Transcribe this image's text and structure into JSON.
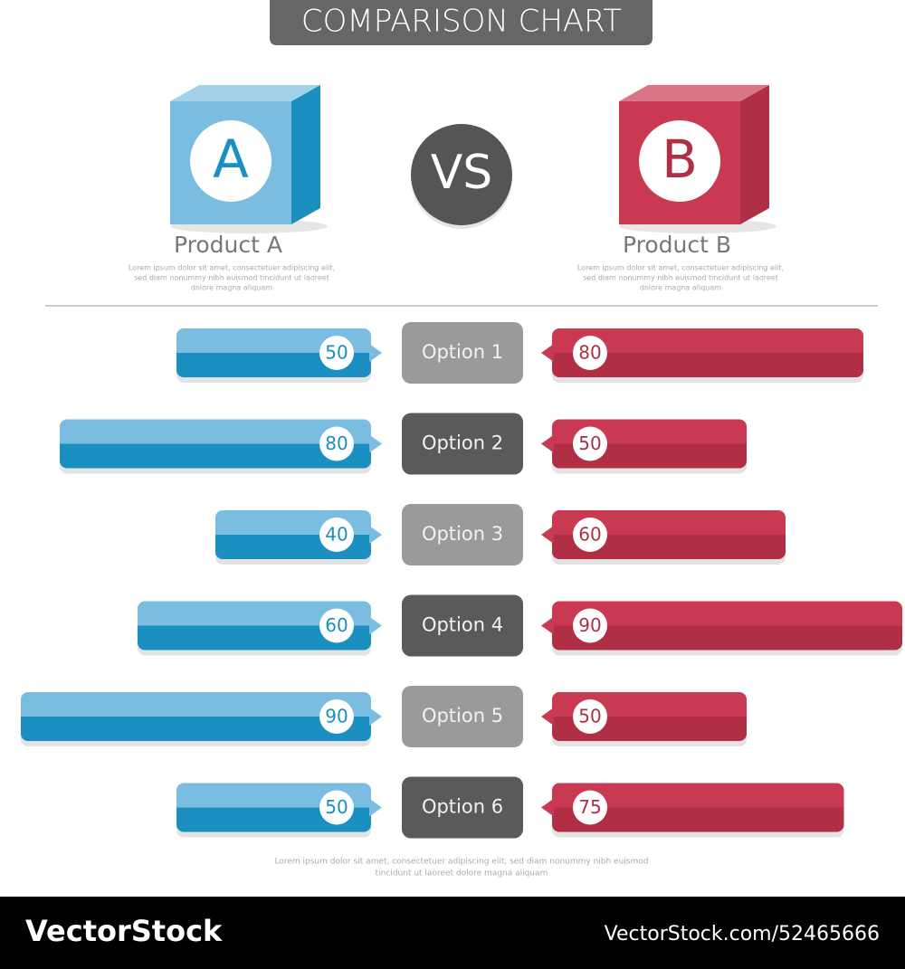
{
  "chart_data": {
    "type": "butterfly",
    "title": "COMPARISON CHART",
    "vs_label": "VS",
    "categories": [
      "Option 1",
      "Option 2",
      "Option 3",
      "Option 4",
      "Option 5",
      "Option 6"
    ],
    "series": [
      {
        "name": "Product A",
        "letter": "A",
        "color": "#1a8fc0",
        "light_color": "#7bbde0",
        "description": [
          "Lorem ipsum dolor sit amet, consectetuer adipiscing elit,",
          "sed diam nonummy nibh euismod tincidunt ut laoreet",
          "dolore magna aliquam"
        ],
        "values": [
          50,
          80,
          40,
          60,
          90,
          50
        ]
      },
      {
        "name": "Product B",
        "letter": "B",
        "color": "#b02f45",
        "light_color": "#c93a52",
        "description": [
          "Lorem ipsum dolor sit amet, consectetuer adipiscing elit,",
          "sed diam nonummy nibh euismod tincidunt ut laoreet",
          "dolore magna aliquam"
        ],
        "values": [
          80,
          50,
          60,
          90,
          50,
          75
        ]
      }
    ],
    "footnote": [
      "Lorem ipsum dolor sit amet, consectetuer adipiscing elit, sed diam nonummy nibh euismod",
      "tincidunt ut laoreet dolore magna aliquam"
    ],
    "brand": "VectorStock",
    "brand_id": "VectorStock.com/52465666"
  }
}
